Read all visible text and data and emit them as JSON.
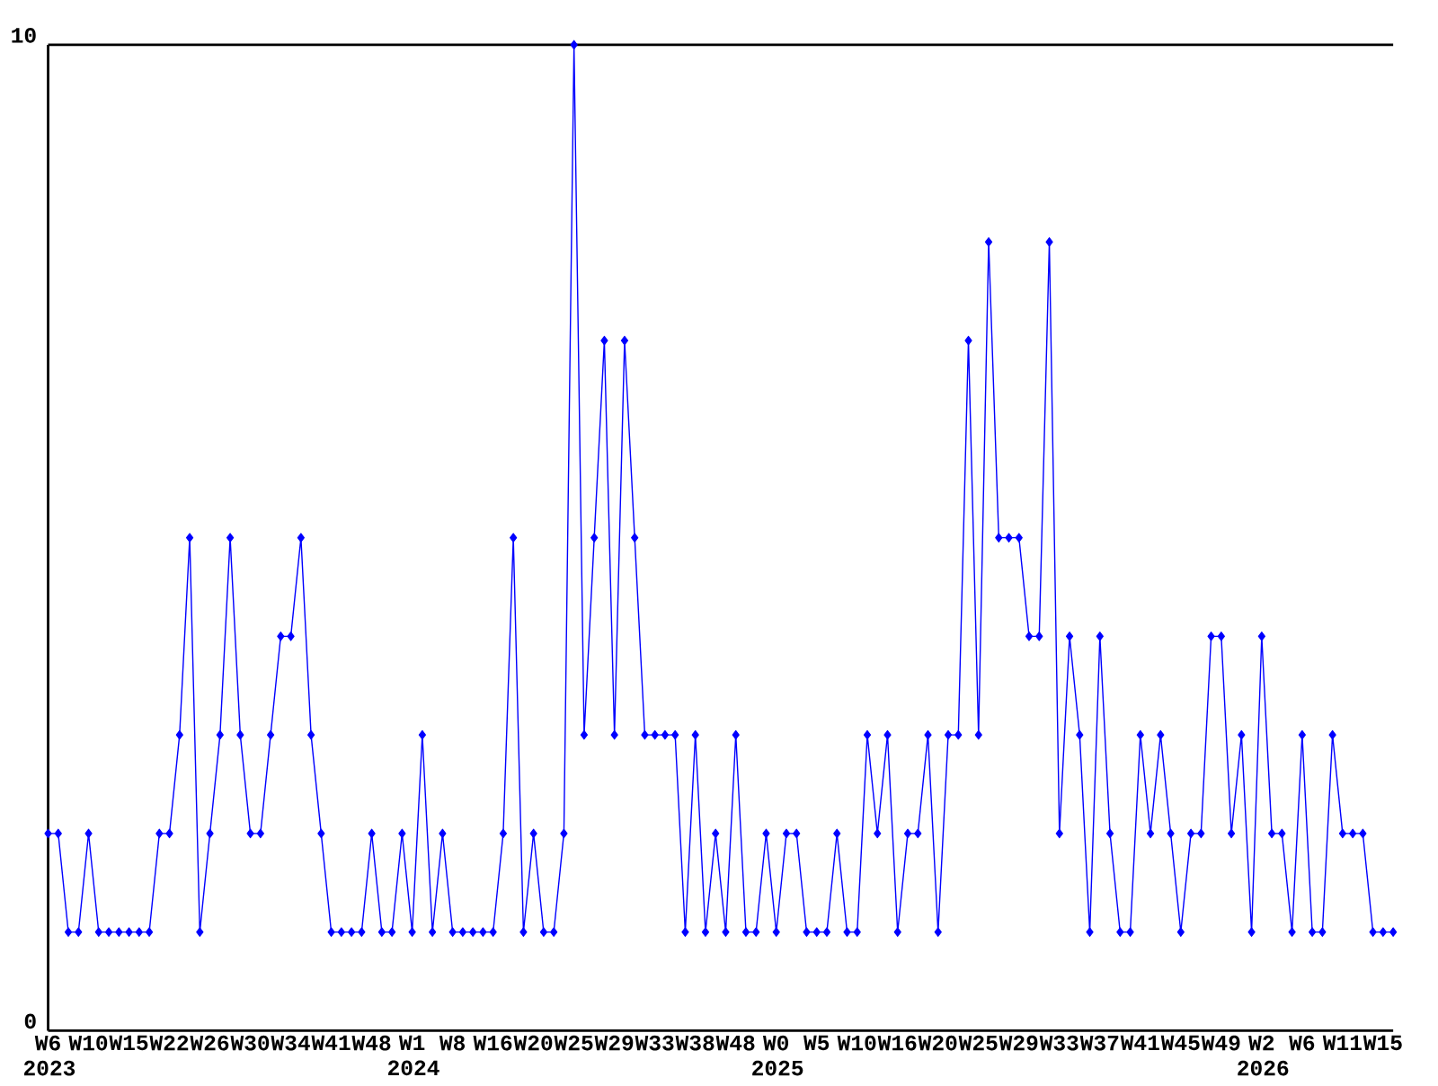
{
  "chart_data": {
    "type": "line",
    "categories": [
      "W6 2023",
      null,
      null,
      null,
      "W10",
      null,
      null,
      null,
      "W15",
      null,
      null,
      null,
      "W22",
      null,
      null,
      null,
      "W26",
      null,
      null,
      null,
      "W30",
      null,
      null,
      null,
      "W34",
      null,
      null,
      null,
      "W41",
      null,
      null,
      null,
      "W48",
      null,
      null,
      null,
      "W1 2024",
      null,
      null,
      null,
      "W8",
      null,
      null,
      null,
      "W16",
      null,
      null,
      null,
      "W20",
      null,
      null,
      null,
      "W25",
      null,
      null,
      null,
      "W29",
      null,
      null,
      null,
      "W33",
      null,
      null,
      null,
      "W38",
      null,
      null,
      null,
      "W48",
      null,
      null,
      null,
      "W0 2025",
      null,
      null,
      null,
      "W5",
      null,
      null,
      null,
      "W10",
      null,
      null,
      null,
      "W16",
      null,
      null,
      null,
      "W20",
      null,
      null,
      null,
      "W25",
      null,
      null,
      null,
      "W29",
      null,
      null,
      null,
      "W33",
      null,
      null,
      null,
      "W37",
      null,
      null,
      null,
      "W41",
      null,
      null,
      null,
      "W45",
      null,
      null,
      null,
      "W49",
      null,
      null,
      null,
      "W2 2026",
      null,
      null,
      null,
      "W6",
      null,
      null,
      null,
      "W11",
      null,
      null,
      null,
      "W15",
      null
    ],
    "values": [
      2,
      2,
      1,
      1,
      2,
      1,
      1,
      1,
      1,
      1,
      1,
      2,
      2,
      3,
      5,
      1,
      2,
      3,
      5,
      3,
      2,
      2,
      3,
      4,
      4,
      5,
      3,
      2,
      1,
      1,
      1,
      1,
      2,
      1,
      1,
      2,
      1,
      3,
      1,
      2,
      1,
      1,
      1,
      1,
      1,
      2,
      5,
      1,
      2,
      1,
      1,
      2,
      10,
      3,
      5,
      7,
      3,
      7,
      5,
      3,
      3,
      3,
      3,
      1,
      3,
      1,
      2,
      1,
      3,
      1,
      1,
      2,
      1,
      2,
      2,
      1,
      1,
      1,
      2,
      1,
      1,
      3,
      2,
      3,
      1,
      2,
      2,
      3,
      1,
      3,
      3,
      7,
      3,
      8,
      5,
      5,
      5,
      4,
      4,
      8,
      2,
      4,
      3,
      1,
      4,
      2,
      1,
      1,
      3,
      2,
      3,
      2,
      1,
      2,
      2,
      4,
      4,
      2,
      3,
      1,
      4,
      2,
      2,
      1,
      3,
      1,
      1,
      3,
      2,
      2,
      2,
      1,
      1,
      1
    ],
    "color": "#0000ff",
    "ylim": [
      0,
      10
    ],
    "yticks": [
      0,
      10
    ],
    "marker": "diamond",
    "line_style": "solid"
  }
}
